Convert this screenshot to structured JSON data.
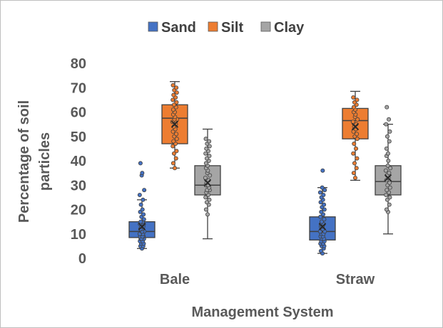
{
  "chart_data": {
    "type": "box",
    "xlabel": "Management System",
    "ylabel": "Percentage of soil particles",
    "ylim": [
      0,
      80
    ],
    "yticks": [
      0,
      10,
      20,
      30,
      40,
      50,
      60,
      70,
      80
    ],
    "categories": [
      "Bale",
      "Straw"
    ],
    "legend_position": "top",
    "grid": false,
    "series": [
      {
        "name": "Sand",
        "color": "#4472c4",
        "boxes": [
          {
            "min": 4,
            "q1": 8.5,
            "median": 11,
            "q3": 15,
            "max": 24,
            "mean": 13,
            "points": [
              4,
              5,
              5,
              6,
              6,
              7,
              7,
              8,
              8,
              8,
              9,
              9,
              9,
              10,
              10,
              10,
              11,
              11,
              11,
              12,
              12,
              12,
              13,
              13,
              14,
              14,
              15,
              15,
              16,
              17,
              18,
              19,
              20,
              22,
              24,
              26,
              28,
              34,
              35,
              39
            ]
          },
          {
            "min": 2,
            "q1": 7.5,
            "median": 11,
            "q3": 17,
            "max": 29,
            "mean": 13,
            "points": [
              2,
              3,
              4,
              5,
              5,
              6,
              6,
              7,
              7,
              8,
              8,
              9,
              9,
              10,
              10,
              11,
              11,
              12,
              12,
              13,
              13,
              14,
              14,
              15,
              16,
              17,
              18,
              19,
              20,
              21,
              22,
              23,
              24,
              25,
              26,
              27,
              28,
              29,
              36
            ]
          }
        ]
      },
      {
        "name": "Silt",
        "color": "#ed7d31",
        "boxes": [
          {
            "min": 37,
            "q1": 47,
            "median": 57.5,
            "q3": 63,
            "max": 72.5,
            "mean": 55,
            "points": [
              37,
              39,
              41,
              43,
              44,
              46,
              47,
              48,
              49,
              50,
              51,
              52,
              53,
              54,
              55,
              56,
              57,
              57,
              58,
              59,
              60,
              61,
              62,
              63,
              64,
              65,
              66,
              67,
              68,
              69,
              70,
              71
            ]
          },
          {
            "min": 32,
            "q1": 49,
            "median": 56.5,
            "q3": 61.5,
            "max": 68.5,
            "mean": 54,
            "points": [
              33,
              35,
              37,
              39,
              41,
              43,
              45,
              47,
              49,
              50,
              51,
              52,
              53,
              54,
              55,
              56,
              57,
              58,
              59,
              60,
              61,
              62,
              63,
              64,
              65,
              66
            ]
          }
        ]
      },
      {
        "name": "Clay",
        "color": "#a5a5a5",
        "boxes": [
          {
            "min": 8,
            "q1": 26,
            "median": 30,
            "q3": 38,
            "max": 53,
            "mean": 31,
            "points": [
              18,
              20,
              22,
              23,
              24,
              25,
              26,
              27,
              28,
              28,
              29,
              30,
              30,
              31,
              32,
              33,
              34,
              35,
              36,
              37,
              38,
              39,
              40,
              41,
              42,
              43,
              44,
              45,
              46,
              47,
              48,
              49
            ]
          },
          {
            "min": 10,
            "q1": 26,
            "median": 31.5,
            "q3": 38,
            "max": 55,
            "mean": 33,
            "points": [
              19,
              20,
              22,
              24,
              25,
              26,
              27,
              28,
              29,
              30,
              31,
              32,
              33,
              34,
              35,
              36,
              37,
              38,
              40,
              42,
              43,
              45,
              48,
              50,
              52,
              55,
              57,
              62
            ]
          }
        ]
      }
    ]
  }
}
